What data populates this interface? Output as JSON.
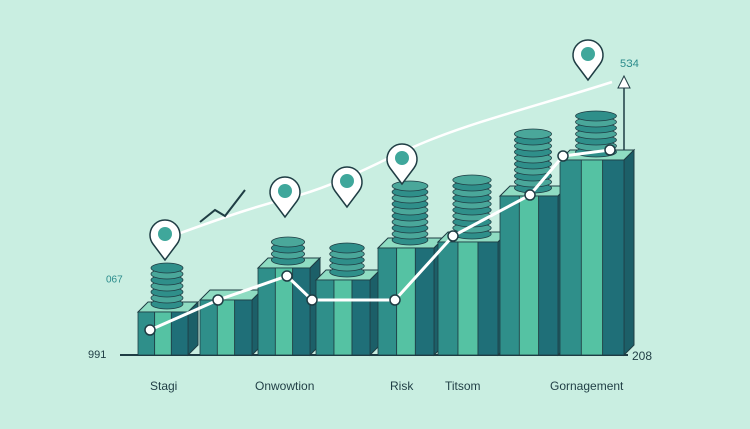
{
  "axis_labels": {
    "top_right": "5З4",
    "left_upper": "067",
    "left_bottom": "991",
    "right_bottom": "208"
  },
  "categories": [
    "Stagi",
    "Onwowtion",
    "Risk",
    "Titsom",
    "Gornagement"
  ]
}
